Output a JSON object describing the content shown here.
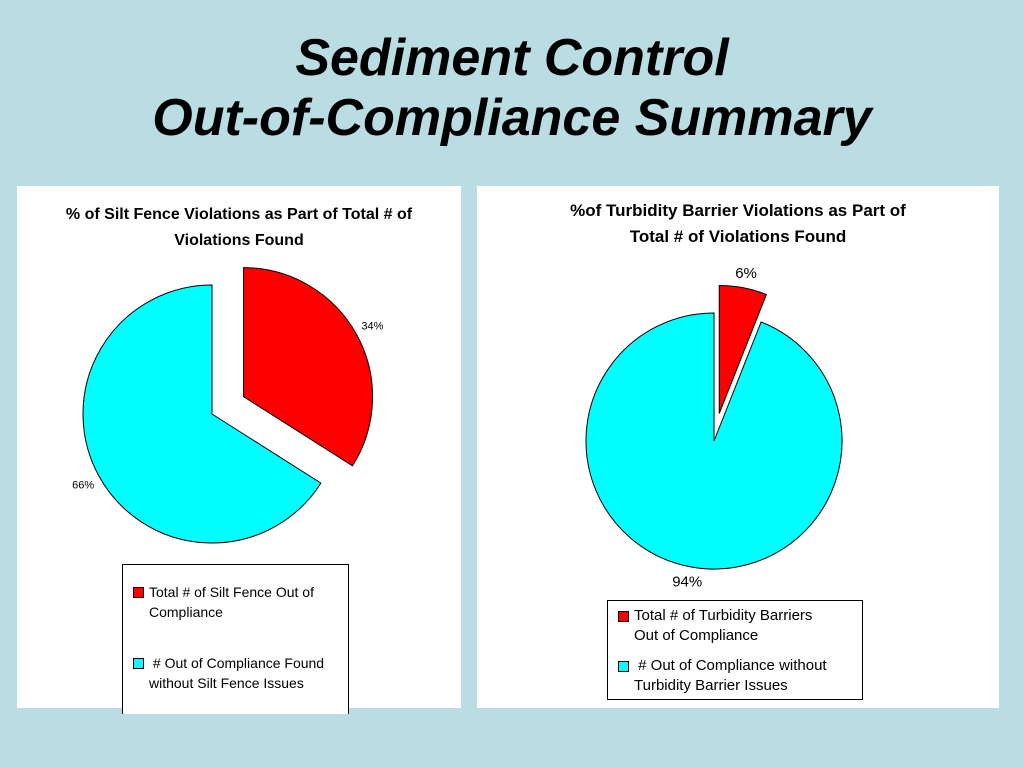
{
  "slide": {
    "title_line1": "Sediment Control",
    "title_line2": "Out-of-Compliance Summary",
    "background": "#b9dde3"
  },
  "chart_data": [
    {
      "type": "pie",
      "title_line1": "% of Silt Fence Violations as Part of Total # of",
      "title_line2": "Violations Found",
      "slices": [
        {
          "label": "Total # of Silt Fence Out of Compliance",
          "value": 34,
          "value_label": "34%",
          "color": "#ff0000",
          "exploded": true
        },
        {
          "label": " # Out of Compliance Found without Silt Fence Issues",
          "value": 66,
          "value_label": "66%",
          "color": "#00ffff",
          "exploded": false
        }
      ],
      "legend": {
        "items": [
          {
            "line1": "Total # of Silt Fence Out of",
            "line2": "Compliance",
            "color": "#ff0000"
          },
          {
            "line1": " # Out of Compliance Found",
            "line2": "without Silt Fence Issues",
            "color": "#00ffff"
          }
        ],
        "placement": "bottom"
      }
    },
    {
      "type": "pie",
      "title_line1": "%of Turbidity Barrier Violations as Part of",
      "title_line2": "Total # of Violations Found",
      "slices": [
        {
          "label": "Total # of Turbidity Barriers Out of Compliance",
          "value": 6,
          "value_label": "6%",
          "color": "#ff0000",
          "exploded": true
        },
        {
          "label": " # Out of Compliance without Turbidity Barrier Issues",
          "value": 94,
          "value_label": "94%",
          "color": "#00ffff",
          "exploded": false
        }
      ],
      "legend": {
        "items": [
          {
            "line1": "Total # of Turbidity Barriers",
            "line2": "Out of Compliance",
            "color": "#ff0000"
          },
          {
            "line1": " # Out of Compliance without",
            "line2": "Turbidity Barrier Issues",
            "color": "#00ffff"
          }
        ],
        "placement": "bottom"
      }
    }
  ]
}
